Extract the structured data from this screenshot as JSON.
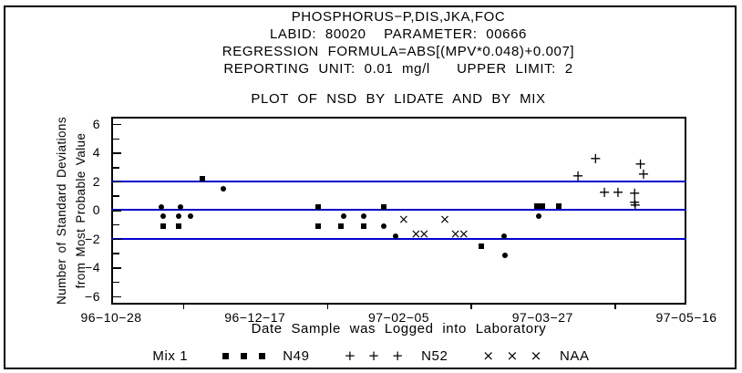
{
  "header": {
    "line1": "PHOSPHORUS−P,DIS,JKA,FOC",
    "line2": "LABID: 80020  PARAMETER: 00666",
    "line3": "REGRESSION FORMULA=ABS[(MPV*0.048)+0.007]",
    "line4": "REPORTING UNIT: 0.01 mg/l   UPPER LIMIT: 2"
  },
  "plot_title": "PLOT OF NSD BY LIDATE AND BY MIX",
  "legend": {
    "title": "Mix 1",
    "entries": [
      {
        "label": "N49",
        "marker": "square",
        "glyph": ""
      },
      {
        "label": "N52",
        "marker": "plus",
        "glyph": "+"
      },
      {
        "label": "NAA",
        "marker": "x",
        "glyph": "×"
      }
    ]
  },
  "chart_data": {
    "type": "scatter",
    "title": "PLOT OF NSD BY LIDATE AND BY MIX",
    "xlabel": "Date Sample was Logged into Laboratory",
    "ylabel_line1": "Number of Standard Deviations",
    "ylabel_line2": "from Most Probable Value",
    "x_axis": {
      "unit": "days since 96-10-28",
      "tick_labels": [
        "96−10−28",
        "96−12−17",
        "97−02−05",
        "97−03−27",
        "97−05−16"
      ],
      "tick_values": [
        0,
        50,
        100,
        150,
        200
      ],
      "minor_tick_values": [
        25,
        75,
        125,
        175
      ],
      "range": [
        0,
        200
      ]
    },
    "y_axis": {
      "tick_values": [
        6,
        4,
        2,
        0,
        -2,
        -4,
        -6
      ],
      "minor_step": 1,
      "range": [
        -6.6,
        6.5
      ]
    },
    "reference_lines": {
      "values": [
        2,
        0,
        -2
      ],
      "color": "#0000cc"
    },
    "marker_color": "#000000",
    "series": [
      {
        "name": "N49",
        "marker": "square",
        "points": [
          [
            17.5,
            0.2,
            "dot"
          ],
          [
            24,
            0.2,
            "dot"
          ],
          [
            18,
            -0.45,
            "dot"
          ],
          [
            23.6,
            -0.45,
            "dot"
          ],
          [
            27.7,
            -0.45,
            "dot"
          ],
          [
            18,
            -1.1,
            "square"
          ],
          [
            23.6,
            -1.1,
            "square"
          ],
          [
            31.8,
            2.15,
            "square"
          ],
          [
            39.1,
            1.45,
            "dot"
          ],
          [
            71.8,
            0.2,
            "square"
          ],
          [
            94.8,
            0.2,
            "square"
          ],
          [
            80.9,
            -0.45,
            "dot"
          ],
          [
            87.9,
            -0.45,
            "dot"
          ],
          [
            71.8,
            -1.1,
            "square"
          ],
          [
            79.9,
            -1.1,
            "square"
          ],
          [
            87.9,
            -1.1,
            "square"
          ],
          [
            94.8,
            -1.1,
            "dot"
          ],
          [
            98.9,
            -1.8,
            "dot"
          ],
          [
            128.7,
            -2.5,
            "square"
          ],
          [
            136.6,
            -1.8,
            "dot"
          ],
          [
            136.8,
            -3.15,
            "dot"
          ],
          [
            147.9,
            0.25,
            "square"
          ],
          [
            149.8,
            0.25,
            "square"
          ],
          [
            155.7,
            0.25,
            "square"
          ],
          [
            148.5,
            -0.4,
            "dot"
          ]
        ]
      },
      {
        "name": "N52",
        "marker": "plus",
        "glyph": "+",
        "points": [
          [
            162.3,
            2.35
          ],
          [
            168.4,
            3.55
          ],
          [
            171.5,
            1.2
          ],
          [
            176.2,
            1.2
          ],
          [
            182,
            1.15
          ],
          [
            182,
            0.55
          ],
          [
            182.2,
            0.35
          ],
          [
            184,
            3.2
          ],
          [
            185.1,
            2.5
          ]
        ]
      },
      {
        "name": "NAA",
        "marker": "x",
        "glyph": "×",
        "points": [
          [
            101.7,
            -0.7
          ],
          [
            116,
            -0.7
          ],
          [
            106,
            -1.7
          ],
          [
            108.8,
            -1.7
          ],
          [
            119.7,
            -1.7
          ],
          [
            122.6,
            -1.7
          ]
        ]
      }
    ]
  }
}
